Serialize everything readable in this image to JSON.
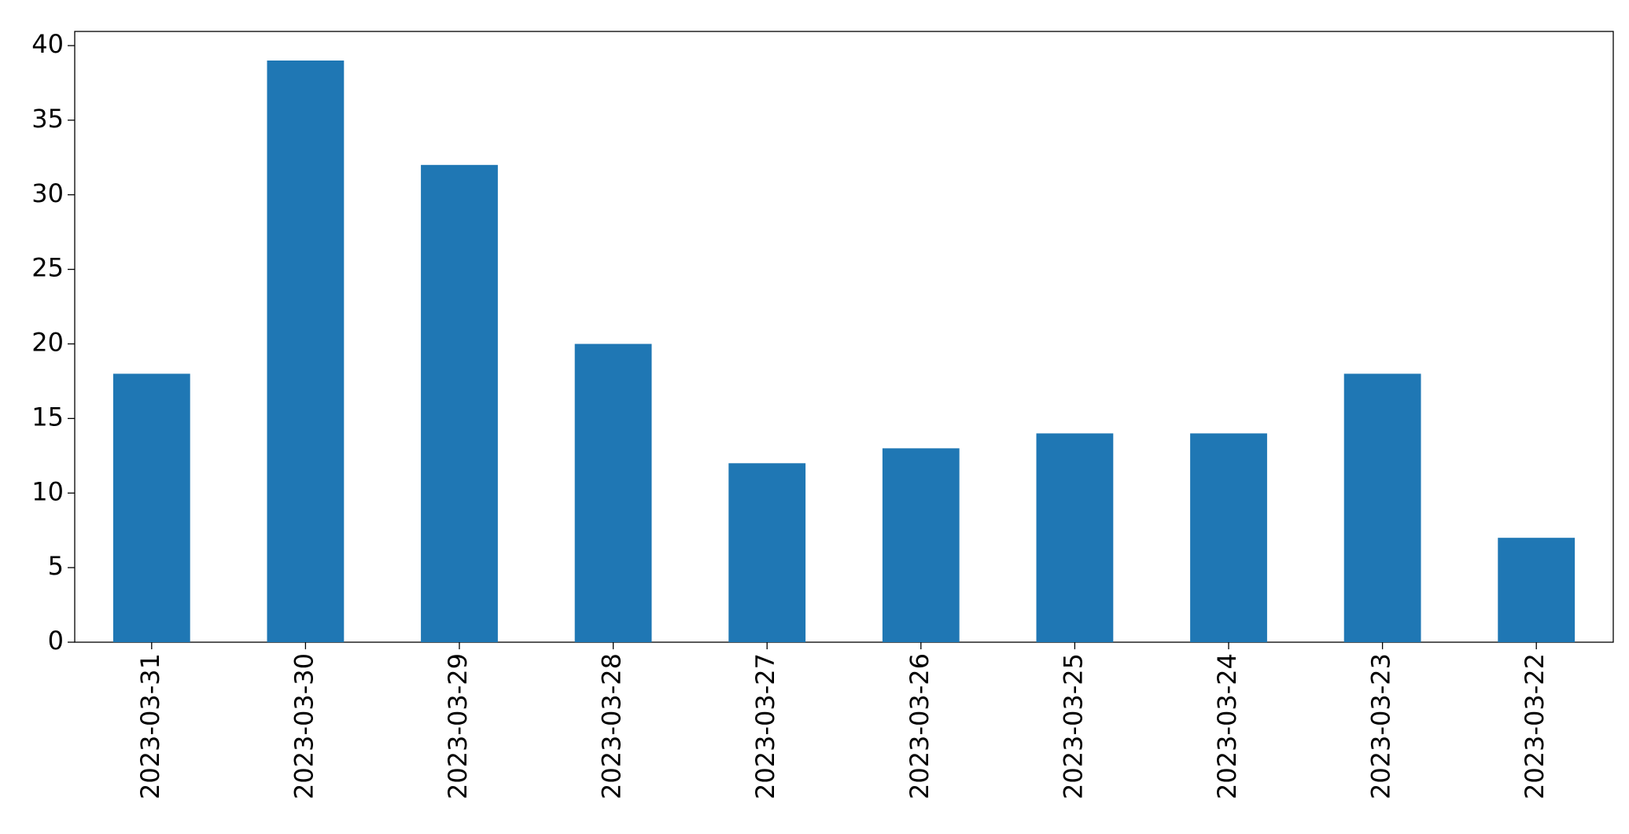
{
  "chart_data": {
    "type": "bar",
    "categories": [
      "2023-03-31",
      "2023-03-30",
      "2023-03-29",
      "2023-03-28",
      "2023-03-27",
      "2023-03-26",
      "2023-03-25",
      "2023-03-24",
      "2023-03-23",
      "2023-03-22"
    ],
    "values": [
      18,
      39,
      32,
      20,
      12,
      13,
      14,
      14,
      18,
      7
    ],
    "color": "#1f77b4",
    "ylim": [
      0,
      40.95
    ],
    "yticks": [
      0,
      5,
      10,
      15,
      20,
      25,
      30,
      35,
      40
    ],
    "grid": false
  }
}
